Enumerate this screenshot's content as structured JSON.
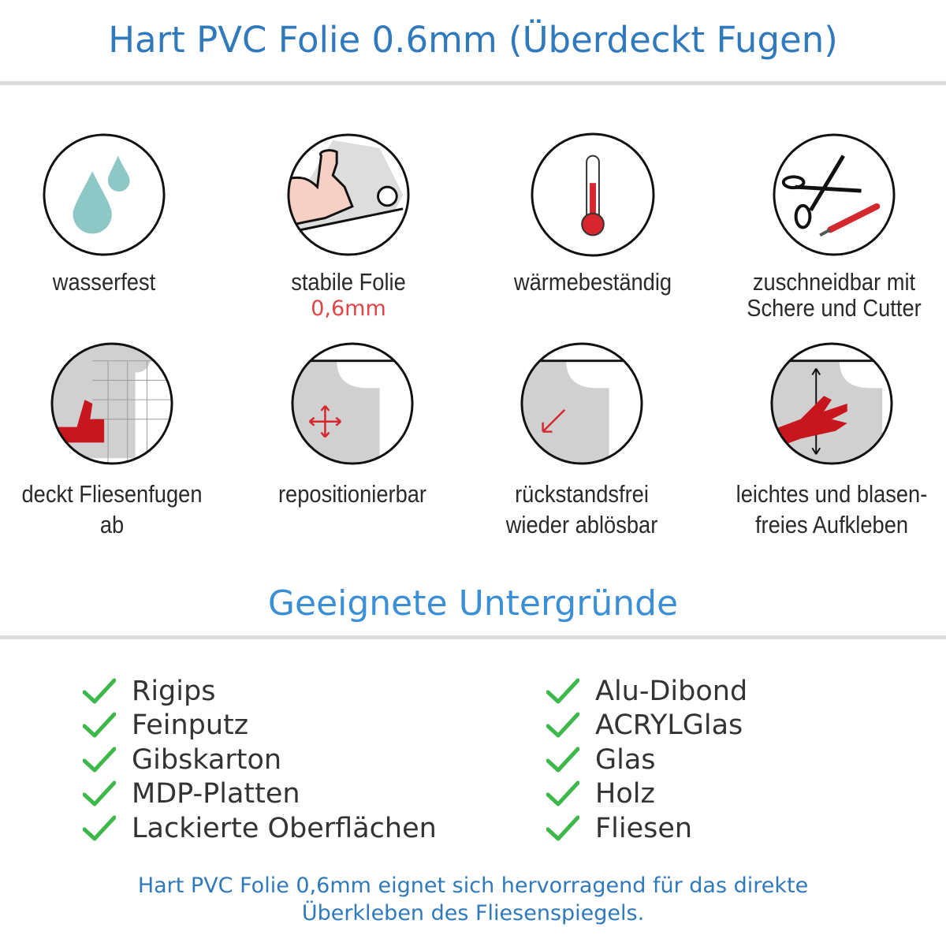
{
  "title": "Hart PVC Folie 0.6mm (Überdeckt Fugen)",
  "features": [
    {
      "icon": "water-drops-icon",
      "label": "wasserfest"
    },
    {
      "icon": "strong-arm-roll-icon",
      "label": "stabile Folie",
      "sub": "0,6mm"
    },
    {
      "icon": "thermometer-icon",
      "label": "wärmebeständig"
    },
    {
      "icon": "scissors-cutter-icon",
      "label": "zuschneidbar mit",
      "label2": "Schere und Cutter"
    },
    {
      "icon": "thumbs-up-tiles-icon",
      "label": "deckt Fliesenfugen ab"
    },
    {
      "icon": "move-arrows-icon",
      "label": "repositionierbar"
    },
    {
      "icon": "peel-arrow-icon",
      "label": "rückstandsfrei",
      "label2": "wieder ablösbar"
    },
    {
      "icon": "hand-smooth-icon",
      "label": "leichtes und blasen-",
      "label2": "freies Aufkleben"
    }
  ],
  "section_title": "Geeignete Untergründe",
  "surfaces_left": [
    "Rigips",
    "Feinputz",
    "Gibskarton",
    "MDP-Platten",
    "Lackierte Oberflächen"
  ],
  "surfaces_right": [
    "Alu-Dibond",
    "ACRYLGlas",
    "Glas",
    "Holz",
    "Fliesen"
  ],
  "footer": {
    "line1": "Hart PVC Folie 0,6mm eignet sich hervorragend für das direkte",
    "line2": "Überkleben des Fliesenspiegels."
  },
  "colors": {
    "title": "#2f79bd",
    "section": "#3a8fd6",
    "check": "#3cb94a",
    "accent_red": "#e04444"
  }
}
